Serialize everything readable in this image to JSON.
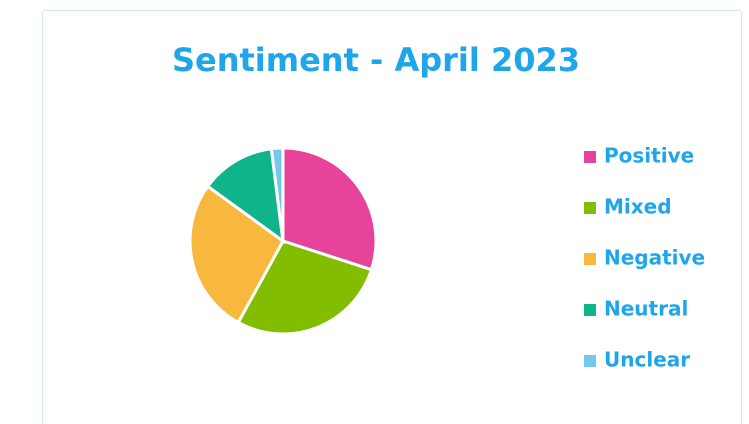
{
  "chart_data": {
    "type": "pie",
    "title": "Sentiment - April 2023",
    "categories": [
      "Positive",
      "Mixed",
      "Negative",
      "Neutral",
      "Unclear"
    ],
    "values": [
      30,
      28,
      27,
      13,
      2
    ],
    "colors": [
      "#e8439a",
      "#82bd00",
      "#f8b83e",
      "#10b48a",
      "#74c9e8"
    ],
    "legend": "right"
  }
}
